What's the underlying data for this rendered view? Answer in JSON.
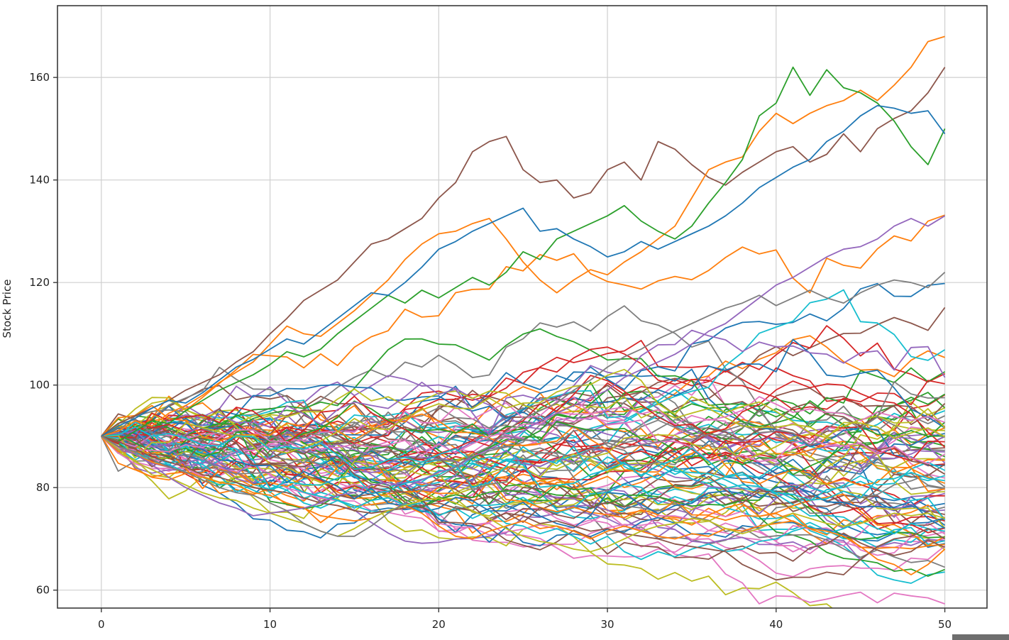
{
  "chart_data": {
    "type": "line",
    "title": "",
    "xlabel": "",
    "ylabel": "Stock Price",
    "xlim": [
      -2.6,
      52.5
    ],
    "ylim": [
      56.5,
      174
    ],
    "xticks": [
      0,
      10,
      20,
      30,
      40,
      50
    ],
    "yticks": [
      60,
      80,
      100,
      120,
      140,
      160
    ],
    "grid": true,
    "legend": "none",
    "colors": [
      "#1f77b4",
      "#ff7f0e",
      "#2ca02c",
      "#d62728",
      "#9467bd",
      "#8c564b",
      "#e377c2",
      "#7f7f7f",
      "#bcbd22",
      "#17becf"
    ],
    "start_value": 90,
    "steps": 50,
    "series_count": 100,
    "highlighted_series": [
      {
        "name": "",
        "color": "#8c564b",
        "values": [
          90,
          92.5,
          94,
          95.5,
          97,
          99,
          100.5,
          102,
          104.5,
          106.5,
          110,
          113,
          116.5,
          118.5,
          120.5,
          124,
          127.5,
          128.5,
          130.5,
          132.5,
          136.5,
          139.5,
          145.5,
          147.5,
          148.5,
          142,
          139.5,
          140,
          136.5,
          137.5,
          142,
          143.5,
          140,
          147.5,
          146,
          143,
          140.5,
          139,
          141.5,
          143.5,
          145.5,
          146.5,
          143.5,
          145,
          149,
          145.5,
          150,
          152,
          153.5,
          157,
          162
        ]
      },
      {
        "name": "",
        "color": "#ff7f0e",
        "values": [
          90,
          91,
          93,
          92,
          94.5,
          96,
          98,
          100.5,
          102.5,
          104.5,
          108,
          111.5,
          110,
          109.5,
          112,
          114.5,
          117.5,
          120.5,
          124.5,
          127.5,
          129.5,
          130,
          131.5,
          132.5,
          128.5,
          124,
          120.5,
          118,
          120.5,
          122.5,
          121.5,
          124,
          126,
          128.5,
          131,
          136.5,
          142,
          143.5,
          144.5,
          149.5,
          153,
          151,
          153,
          154.5,
          155.5,
          157.5,
          155.5,
          158.5,
          162,
          167,
          168
        ]
      },
      {
        "name": "",
        "color": "#2ca02c",
        "values": [
          90,
          89,
          91,
          93,
          92.5,
          95,
          97,
          99,
          100.5,
          102,
          104,
          106.5,
          105.5,
          107,
          110,
          112.5,
          115,
          117.5,
          116,
          118.5,
          117,
          119,
          121,
          119.5,
          122,
          126,
          124.5,
          128.5,
          130,
          131.5,
          133,
          135,
          132,
          130,
          128.5,
          131,
          135.5,
          139.5,
          144,
          152.5,
          155,
          162,
          156.5,
          161.5,
          158,
          157,
          155,
          151.5,
          146.5,
          143,
          150
        ]
      },
      {
        "name": "",
        "color": "#1f77b4",
        "values": [
          90,
          92,
          93.5,
          95.5,
          97,
          96.5,
          98.5,
          101,
          103.5,
          105,
          107,
          109,
          108,
          110.5,
          113,
          115.5,
          118,
          117.5,
          120,
          123,
          126.5,
          128,
          130,
          131.5,
          133,
          134.5,
          130,
          130.5,
          128.5,
          127,
          125,
          126,
          128,
          126.5,
          128,
          129.5,
          131,
          133,
          135.5,
          138.5,
          140.5,
          142.5,
          144,
          147.5,
          149.5,
          152.5,
          154.5,
          154,
          153,
          153.5,
          149
        ]
      },
      {
        "name": "",
        "color": "#17becf",
        "values": [
          90,
          88,
          87,
          85,
          84.5,
          83,
          82,
          80.5,
          81,
          79.5,
          78,
          79.5,
          77,
          76,
          77.5,
          76,
          77.5,
          78,
          76.5,
          77,
          74.5,
          76,
          74,
          75.5,
          73,
          72.5,
          71,
          72,
          70.5,
          69,
          70.5,
          67.5,
          66,
          67.5,
          66.5,
          68,
          69,
          67.5,
          68,
          69.5,
          70,
          71.5,
          72.5,
          71,
          72,
          73.5,
          72,
          71,
          73,
          72,
          71.5
        ]
      },
      {
        "name": "",
        "color": "#8c564b",
        "values": [
          90,
          89,
          87.5,
          86,
          85,
          84,
          82.5,
          82,
          81,
          80,
          79.5,
          79,
          78,
          77,
          76.5,
          75.5,
          75,
          75.5,
          76,
          76.5,
          77,
          76,
          75.5,
          74,
          75,
          74.5,
          73,
          73.5,
          72.5,
          71.5,
          72,
          71,
          70.5,
          70,
          69,
          68.5,
          68,
          67.5,
          65,
          63.5,
          62,
          62.5,
          62.5,
          63.5,
          63,
          66,
          68.5,
          70,
          70.5,
          72,
          70
        ]
      },
      {
        "name": "",
        "color": "#ff7f0e",
        "values": [
          90,
          88,
          86.5,
          85,
          84,
          83,
          82,
          81,
          80.5,
          79,
          78.5,
          77,
          76,
          74.5,
          74,
          73.5,
          74,
          75.5,
          76.5,
          75,
          72.5,
          70.5,
          70,
          71.5,
          72.5,
          73.5,
          72,
          72.5,
          71.5,
          70,
          71.5,
          72.5,
          71.5,
          70.5,
          70,
          71,
          70.5,
          72,
          71.5,
          72.5,
          73,
          73.5,
          72,
          71.5,
          70.5,
          68.5,
          66,
          65,
          63,
          65,
          68
        ]
      },
      {
        "name": "",
        "color": "#bcbd22",
        "values": [
          90,
          87.5,
          85,
          83.5,
          82,
          80.5,
          79,
          78,
          77.5,
          76,
          75,
          74,
          73,
          71.5,
          70.5,
          72,
          74,
          75.5,
          76.5,
          77.5,
          78,
          77,
          75.5,
          74,
          72,
          70.5,
          69.5,
          69,
          68,
          67.5,
          68.5,
          70,
          71.5,
          72.5,
          73,
          74,
          73.5,
          72,
          71,
          72,
          73.5,
          75,
          74,
          73,
          72.5,
          73,
          74,
          75,
          74.5,
          75,
          74
        ]
      },
      {
        "name": "",
        "color": "#9467bd",
        "values": [
          90,
          88,
          86.5,
          84.5,
          82,
          80,
          78.5,
          77,
          76,
          74.5,
          75,
          75.5,
          76,
          77,
          78.5,
          79,
          80.5,
          81,
          80,
          81.5,
          83,
          84,
          86,
          87.5,
          89,
          91,
          93,
          94.5,
          96,
          97.5,
          99,
          101.5,
          103,
          104.5,
          106,
          108,
          110.5,
          112,
          114.5,
          117,
          119.5,
          121,
          123,
          125,
          126.5,
          127,
          128.5,
          131,
          132.5,
          131,
          133
        ]
      },
      {
        "name": "",
        "color": "#7f7f7f",
        "values": [
          90,
          88,
          87,
          85.5,
          84,
          83,
          81.5,
          80,
          79,
          78.5,
          77,
          75.5,
          73,
          71.5,
          70.5,
          70.5,
          72.5,
          75,
          77,
          79.5,
          82,
          84,
          86.5,
          88,
          91,
          93.5,
          95,
          96.5,
          99,
          101,
          103.5,
          105.5,
          107,
          109,
          110.5,
          112,
          113.5,
          115,
          116,
          117.5,
          115.5,
          117,
          118.5,
          117,
          116,
          118,
          119.5,
          120.5,
          120,
          119,
          122
        ]
      }
    ]
  }
}
